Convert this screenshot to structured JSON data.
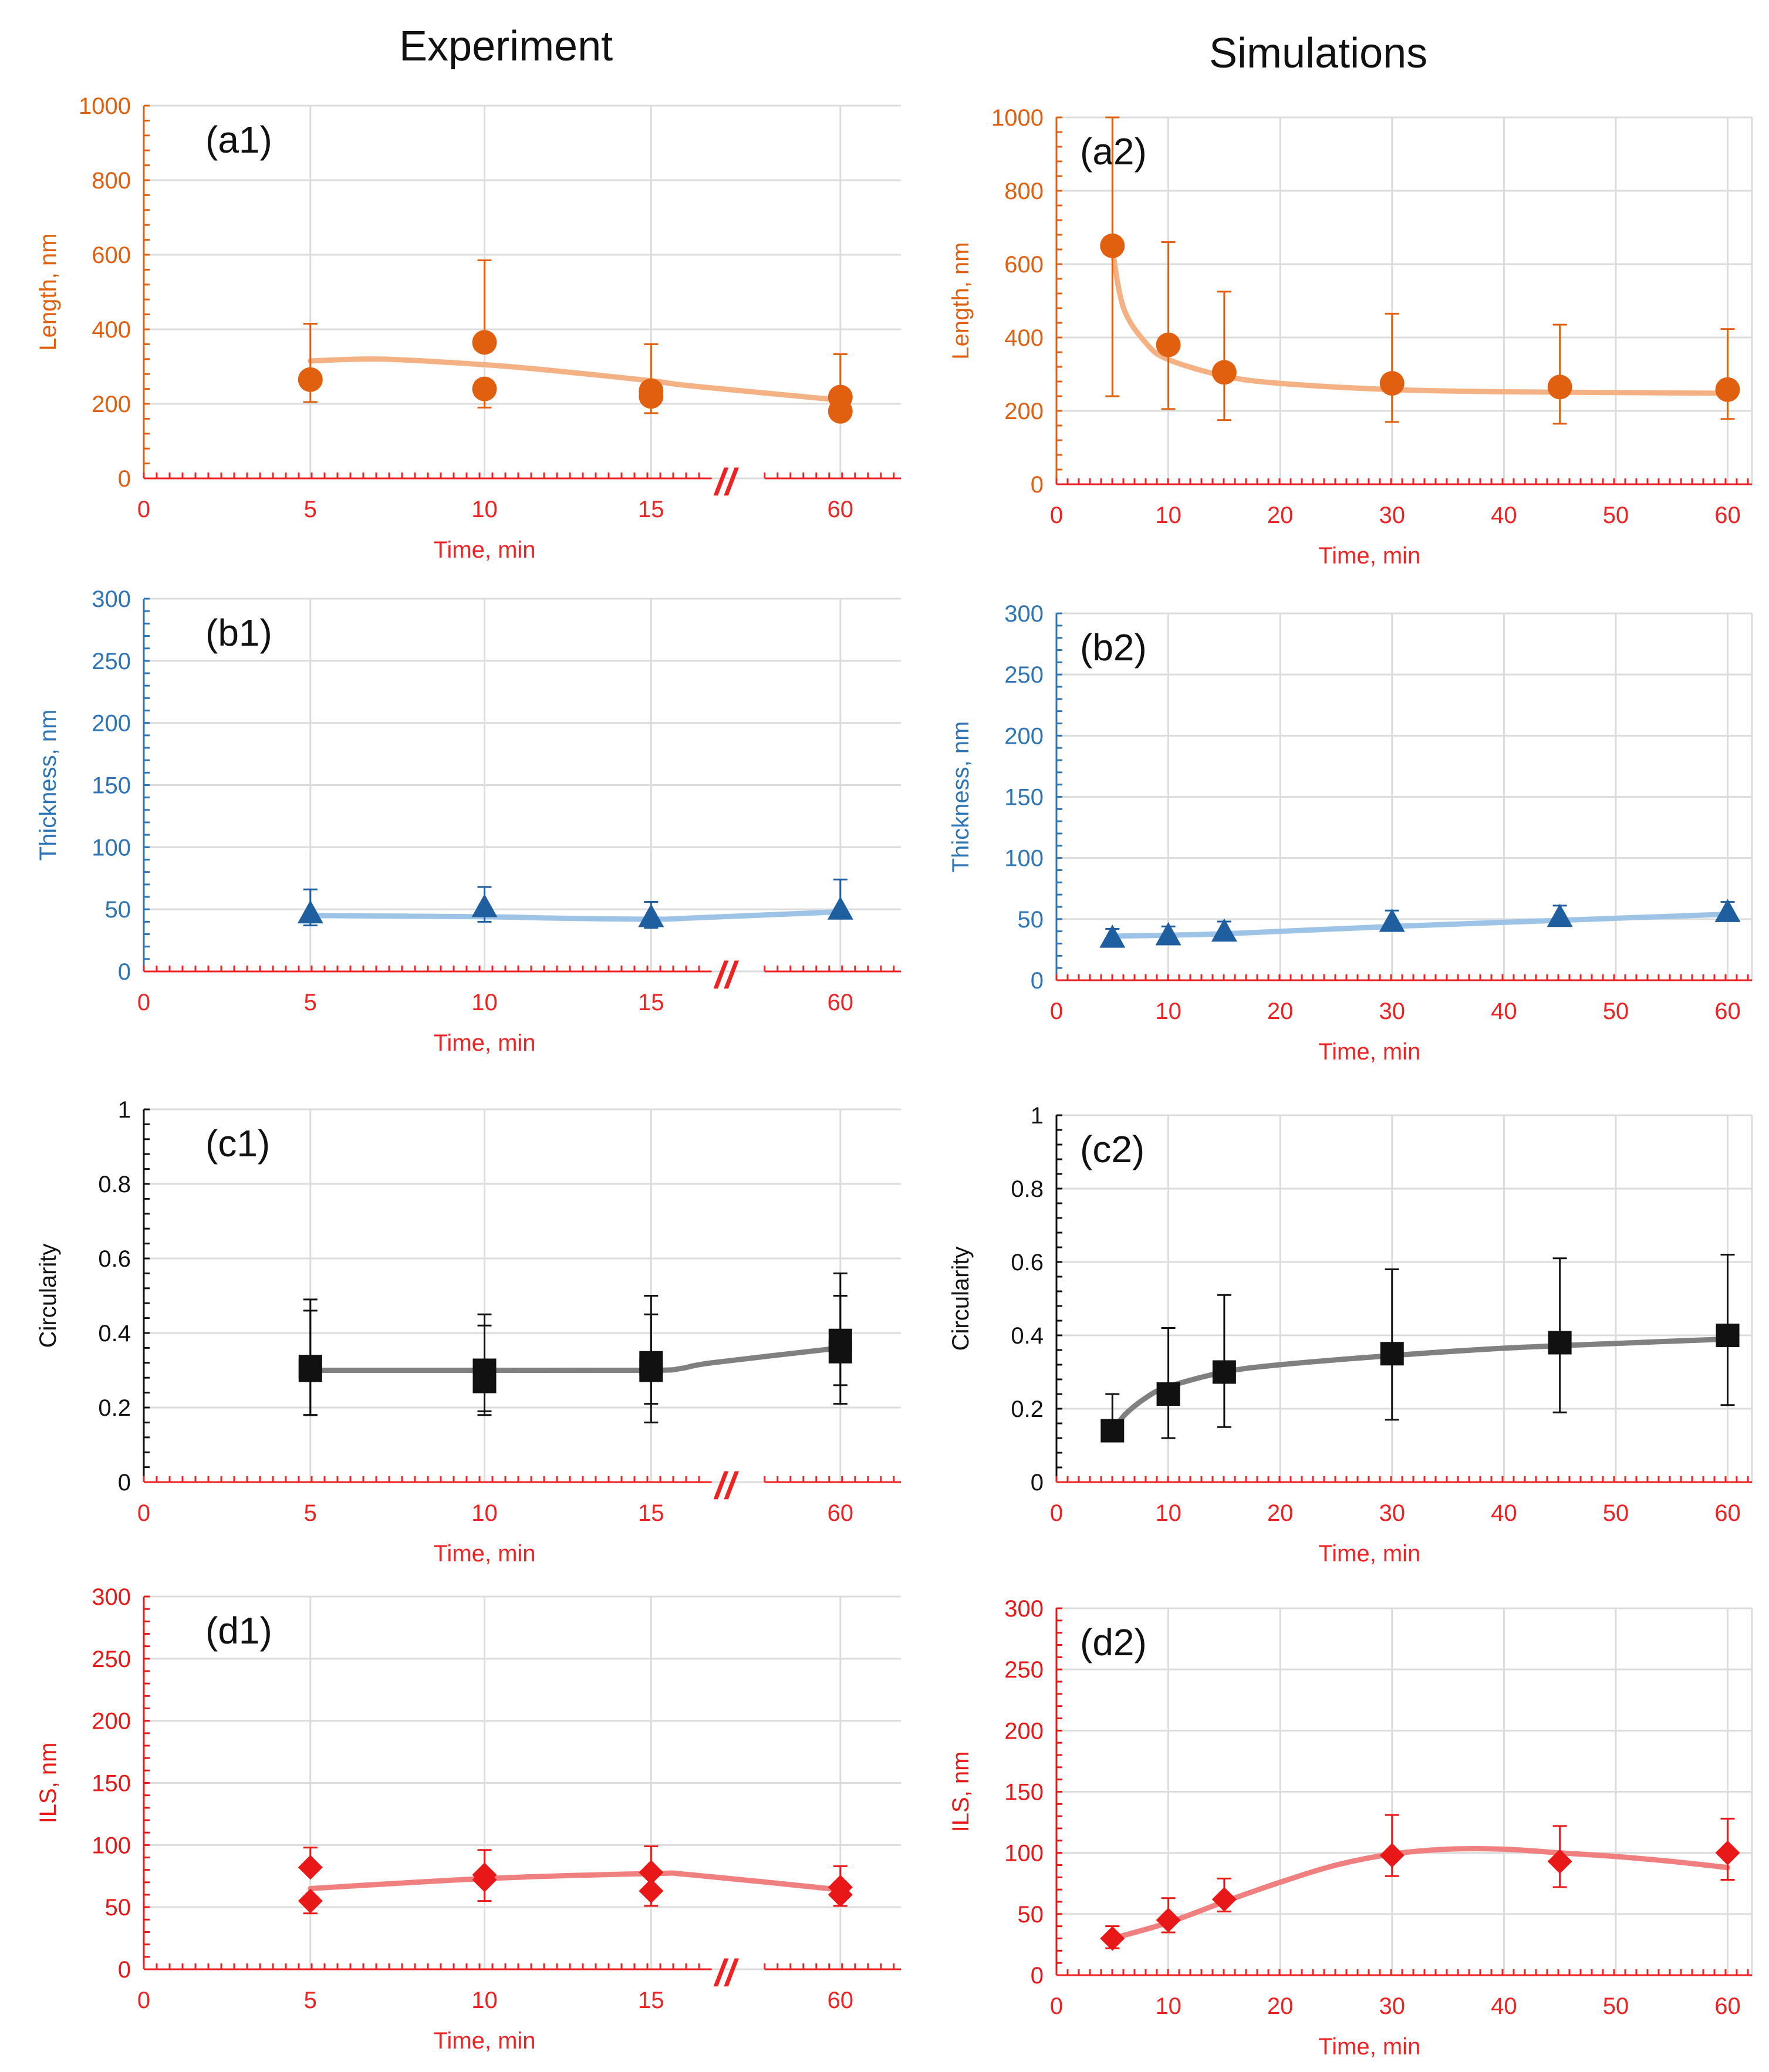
{
  "columns": {
    "left": "Experiment",
    "right": "Simulations"
  },
  "chart_data": [
    {
      "id": "a1",
      "type": "scatter",
      "label": "(a1)",
      "broken_axis": true,
      "break_mark": "//",
      "xlabel": "Time, min",
      "ylabel": "Length, nm",
      "xticks": [
        "0",
        "5",
        "10",
        "15",
        "60"
      ],
      "xtick_values": [
        0,
        5,
        10,
        15,
        60
      ],
      "yticks": [
        "0",
        "200",
        "400",
        "600",
        "800",
        "1000"
      ],
      "ylim": [
        0,
        1000
      ],
      "colors": {
        "marker": "#e06010",
        "line": "#f4b183",
        "axis": "#ee2222",
        "ylabel": "#e06010",
        "xlabel": "#ee2222"
      },
      "marker": "circle",
      "points": [
        {
          "x": 5,
          "y": 265,
          "err_lo": 60,
          "err_hi": 150
        },
        {
          "x": 10,
          "y": 365,
          "err_lo": 0,
          "err_hi": 220
        },
        {
          "x": 10,
          "y": 240,
          "err_lo": 50,
          "err_hi": 0
        },
        {
          "x": 15,
          "y": 235,
          "err_lo": 0,
          "err_hi": 125
        },
        {
          "x": 15,
          "y": 220,
          "err_lo": 45,
          "err_hi": 0
        },
        {
          "x": 60,
          "y": 218,
          "err_lo": 0,
          "err_hi": 115
        },
        {
          "x": 60,
          "y": 180,
          "err_lo": 0,
          "err_hi": 0
        }
      ],
      "trend": [
        [
          5,
          315
        ],
        [
          7,
          320
        ],
        [
          10,
          305
        ],
        [
          12,
          290
        ],
        [
          15,
          262
        ],
        [
          17,
          248
        ],
        [
          60,
          210
        ]
      ]
    },
    {
      "id": "a2",
      "type": "scatter",
      "label": "(a2)",
      "broken_axis": false,
      "xlabel": "Time, min",
      "ylabel": "Length, nm",
      "xticks": [
        "0",
        "10",
        "20",
        "30",
        "40",
        "50",
        "60"
      ],
      "xtick_values": [
        0,
        10,
        20,
        30,
        40,
        50,
        60
      ],
      "yticks": [
        "0",
        "200",
        "400",
        "600",
        "800",
        "1000"
      ],
      "ylim": [
        0,
        1000
      ],
      "colors": {
        "marker": "#e06010",
        "line": "#f4b183",
        "axis": "#ee2222",
        "ylabel": "#e06010",
        "xlabel": "#ee2222"
      },
      "marker": "circle",
      "points": [
        {
          "x": 5,
          "y": 650,
          "err_lo": 410,
          "err_hi": 350
        },
        {
          "x": 10,
          "y": 380,
          "err_lo": 175,
          "err_hi": 280
        },
        {
          "x": 15,
          "y": 305,
          "err_lo": 130,
          "err_hi": 220
        },
        {
          "x": 30,
          "y": 275,
          "err_lo": 105,
          "err_hi": 190
        },
        {
          "x": 45,
          "y": 265,
          "err_lo": 100,
          "err_hi": 170
        },
        {
          "x": 60,
          "y": 258,
          "err_lo": 80,
          "err_hi": 165
        }
      ],
      "trend": [
        [
          5,
          640
        ],
        [
          6,
          480
        ],
        [
          8,
          385
        ],
        [
          10,
          340
        ],
        [
          15,
          295
        ],
        [
          20,
          275
        ],
        [
          30,
          258
        ],
        [
          40,
          252
        ],
        [
          50,
          250
        ],
        [
          60,
          248
        ]
      ]
    },
    {
      "id": "b1",
      "type": "scatter",
      "label": "(b1)",
      "broken_axis": true,
      "break_mark": "//",
      "xlabel": "Time, min",
      "ylabel": "Thickness, nm",
      "xticks": [
        "0",
        "5",
        "10",
        "15",
        "60"
      ],
      "xtick_values": [
        0,
        5,
        10,
        15,
        60
      ],
      "yticks": [
        "0",
        "50",
        "100",
        "150",
        "200",
        "250",
        "300"
      ],
      "ylim": [
        0,
        300
      ],
      "colors": {
        "marker": "#1f5fa0",
        "line": "#9dc3e6",
        "axis": "#ee2222",
        "ylabel": "#2e75b6",
        "xlabel": "#ee2222"
      },
      "marker": "triangle",
      "points": [
        {
          "x": 5,
          "y": 47,
          "err_lo": 10,
          "err_hi": 19
        },
        {
          "x": 10,
          "y": 52,
          "err_lo": 12,
          "err_hi": 16
        },
        {
          "x": 15,
          "y": 44,
          "err_lo": 9,
          "err_hi": 12
        },
        {
          "x": 60,
          "y": 50,
          "err_lo": 0,
          "err_hi": 24
        }
      ],
      "trend": [
        [
          5,
          45
        ],
        [
          10,
          44
        ],
        [
          12,
          43
        ],
        [
          15,
          42
        ],
        [
          17,
          43
        ],
        [
          60,
          48
        ]
      ]
    },
    {
      "id": "b2",
      "type": "scatter",
      "label": "(b2)",
      "broken_axis": false,
      "xlabel": "Time, min",
      "ylabel": "Thickness, nm",
      "xticks": [
        "0",
        "10",
        "20",
        "30",
        "40",
        "50",
        "60"
      ],
      "xtick_values": [
        0,
        10,
        20,
        30,
        40,
        50,
        60
      ],
      "yticks": [
        "0",
        "50",
        "100",
        "150",
        "200",
        "250",
        "300"
      ],
      "ylim": [
        0,
        300
      ],
      "colors": {
        "marker": "#1f5fa0",
        "line": "#9dc3e6",
        "axis": "#ee2222",
        "ylabel": "#2e75b6",
        "xlabel": "#ee2222"
      },
      "marker": "triangle",
      "points": [
        {
          "x": 5,
          "y": 35,
          "err_lo": 5,
          "err_hi": 7
        },
        {
          "x": 10,
          "y": 37,
          "err_lo": 5,
          "err_hi": 7
        },
        {
          "x": 15,
          "y": 40,
          "err_lo": 6,
          "err_hi": 8
        },
        {
          "x": 30,
          "y": 48,
          "err_lo": 6,
          "err_hi": 9
        },
        {
          "x": 45,
          "y": 52,
          "err_lo": 6,
          "err_hi": 9
        },
        {
          "x": 60,
          "y": 56,
          "err_lo": 6,
          "err_hi": 8
        }
      ],
      "trend": [
        [
          5,
          36
        ],
        [
          15,
          38
        ],
        [
          30,
          44
        ],
        [
          45,
          49
        ],
        [
          60,
          54
        ]
      ]
    },
    {
      "id": "c1",
      "type": "scatter",
      "label": "(c1)",
      "broken_axis": true,
      "break_mark": "//",
      "xlabel": "Time, min",
      "ylabel": "Circularity",
      "xticks": [
        "0",
        "5",
        "10",
        "15",
        "60"
      ],
      "xtick_values": [
        0,
        5,
        10,
        15,
        60
      ],
      "yticks": [
        "0",
        "0.2",
        "0.4",
        "0.6",
        "0.8",
        "1"
      ],
      "ylim": [
        0,
        1
      ],
      "colors": {
        "marker": "#111111",
        "line": "#808080",
        "axis": "#ee2222",
        "ylabel": "#111111",
        "xlabel": "#ee2222"
      },
      "marker": "square",
      "points": [
        {
          "x": 5,
          "y": 0.31,
          "err_lo": 0.13,
          "err_hi": 0.18
        },
        {
          "x": 5,
          "y": 0.3,
          "err_lo": 0.12,
          "err_hi": 0.16
        },
        {
          "x": 10,
          "y": 0.3,
          "err_lo": 0.12,
          "err_hi": 0.15
        },
        {
          "x": 10,
          "y": 0.27,
          "err_lo": 0.08,
          "err_hi": 0.15
        },
        {
          "x": 15,
          "y": 0.32,
          "err_lo": 0.11,
          "err_hi": 0.18
        },
        {
          "x": 15,
          "y": 0.3,
          "err_lo": 0.14,
          "err_hi": 0.15
        },
        {
          "x": 60,
          "y": 0.38,
          "err_lo": 0.12,
          "err_hi": 0.18
        },
        {
          "x": 60,
          "y": 0.35,
          "err_lo": 0.14,
          "err_hi": 0.15
        }
      ],
      "trend": [
        [
          5,
          0.3
        ],
        [
          10,
          0.3
        ],
        [
          15,
          0.3
        ],
        [
          16.5,
          0.305
        ],
        [
          18,
          0.32
        ],
        [
          60,
          0.36
        ]
      ]
    },
    {
      "id": "c2",
      "type": "scatter",
      "label": "(c2)",
      "broken_axis": false,
      "xlabel": "Time, min",
      "ylabel": "Circularity",
      "xticks": [
        "0",
        "10",
        "20",
        "30",
        "40",
        "50",
        "60"
      ],
      "xtick_values": [
        0,
        10,
        20,
        30,
        40,
        50,
        60
      ],
      "yticks": [
        "0",
        "0.2",
        "0.4",
        "0.6",
        "0.8",
        "1"
      ],
      "ylim": [
        0,
        1
      ],
      "colors": {
        "marker": "#111111",
        "line": "#808080",
        "axis": "#ee2222",
        "ylabel": "#111111",
        "xlabel": "#ee2222"
      },
      "marker": "square",
      "points": [
        {
          "x": 5,
          "y": 0.14,
          "err_lo": 0.0,
          "err_hi": 0.1
        },
        {
          "x": 10,
          "y": 0.24,
          "err_lo": 0.12,
          "err_hi": 0.18
        },
        {
          "x": 15,
          "y": 0.3,
          "err_lo": 0.15,
          "err_hi": 0.21
        },
        {
          "x": 30,
          "y": 0.35,
          "err_lo": 0.18,
          "err_hi": 0.23
        },
        {
          "x": 45,
          "y": 0.38,
          "err_lo": 0.19,
          "err_hi": 0.23
        },
        {
          "x": 60,
          "y": 0.4,
          "err_lo": 0.19,
          "err_hi": 0.22
        }
      ],
      "trend": [
        [
          5,
          0.13
        ],
        [
          6,
          0.18
        ],
        [
          8,
          0.23
        ],
        [
          10,
          0.26
        ],
        [
          15,
          0.3
        ],
        [
          20,
          0.32
        ],
        [
          30,
          0.345
        ],
        [
          40,
          0.365
        ],
        [
          50,
          0.378
        ],
        [
          60,
          0.39
        ]
      ]
    },
    {
      "id": "d1",
      "type": "scatter",
      "label": "(d1)",
      "broken_axis": true,
      "break_mark": "//",
      "xlabel": "Time, min",
      "ylabel": "ILS, nm",
      "xticks": [
        "0",
        "5",
        "10",
        "15",
        "60"
      ],
      "xtick_values": [
        0,
        5,
        10,
        15,
        60
      ],
      "yticks": [
        "0",
        "50",
        "100",
        "150",
        "200",
        "250",
        "300"
      ],
      "ylim": [
        0,
        300
      ],
      "colors": {
        "marker": "#e81818",
        "line": "#f08080",
        "axis": "#ee2222",
        "ylabel": "#e81818",
        "xlabel": "#ee2222"
      },
      "marker": "diamond",
      "points": [
        {
          "x": 5,
          "y": 82,
          "err_lo": 0,
          "err_hi": 16
        },
        {
          "x": 5,
          "y": 55,
          "err_lo": 10,
          "err_hi": 0
        },
        {
          "x": 10,
          "y": 76,
          "err_lo": 0,
          "err_hi": 20
        },
        {
          "x": 10,
          "y": 72,
          "err_lo": 17,
          "err_hi": 0
        },
        {
          "x": 15,
          "y": 78,
          "err_lo": 0,
          "err_hi": 21
        },
        {
          "x": 15,
          "y": 63,
          "err_lo": 12,
          "err_hi": 0
        },
        {
          "x": 60,
          "y": 66,
          "err_lo": 0,
          "err_hi": 17
        },
        {
          "x": 60,
          "y": 60,
          "err_lo": 9,
          "err_hi": 0
        }
      ],
      "trend": [
        [
          5,
          65
        ],
        [
          10,
          73
        ],
        [
          15,
          77
        ],
        [
          17,
          76
        ],
        [
          60,
          64
        ]
      ]
    },
    {
      "id": "d2",
      "type": "scatter",
      "label": "(d2)",
      "broken_axis": false,
      "xlabel": "Time, min",
      "ylabel": "ILS, nm",
      "xticks": [
        "0",
        "10",
        "20",
        "30",
        "40",
        "50",
        "60"
      ],
      "xtick_values": [
        0,
        10,
        20,
        30,
        40,
        50,
        60
      ],
      "yticks": [
        "0",
        "50",
        "100",
        "150",
        "200",
        "250",
        "300"
      ],
      "ylim": [
        0,
        300
      ],
      "colors": {
        "marker": "#e81818",
        "line": "#f08080",
        "axis": "#ee2222",
        "ylabel": "#e81818",
        "xlabel": "#ee2222"
      },
      "marker": "diamond",
      "points": [
        {
          "x": 5,
          "y": 30,
          "err_lo": 8,
          "err_hi": 10
        },
        {
          "x": 10,
          "y": 45,
          "err_lo": 10,
          "err_hi": 18
        },
        {
          "x": 15,
          "y": 62,
          "err_lo": 10,
          "err_hi": 17
        },
        {
          "x": 30,
          "y": 98,
          "err_lo": 17,
          "err_hi": 33
        },
        {
          "x": 45,
          "y": 93,
          "err_lo": 21,
          "err_hi": 29
        },
        {
          "x": 60,
          "y": 100,
          "err_lo": 22,
          "err_hi": 28
        }
      ],
      "trend": [
        [
          5,
          30
        ],
        [
          10,
          43
        ],
        [
          15,
          60
        ],
        [
          20,
          76
        ],
        [
          25,
          90
        ],
        [
          30,
          99
        ],
        [
          35,
          103
        ],
        [
          40,
          103
        ],
        [
          45,
          100
        ],
        [
          50,
          97
        ],
        [
          55,
          93
        ],
        [
          60,
          88
        ]
      ]
    }
  ]
}
